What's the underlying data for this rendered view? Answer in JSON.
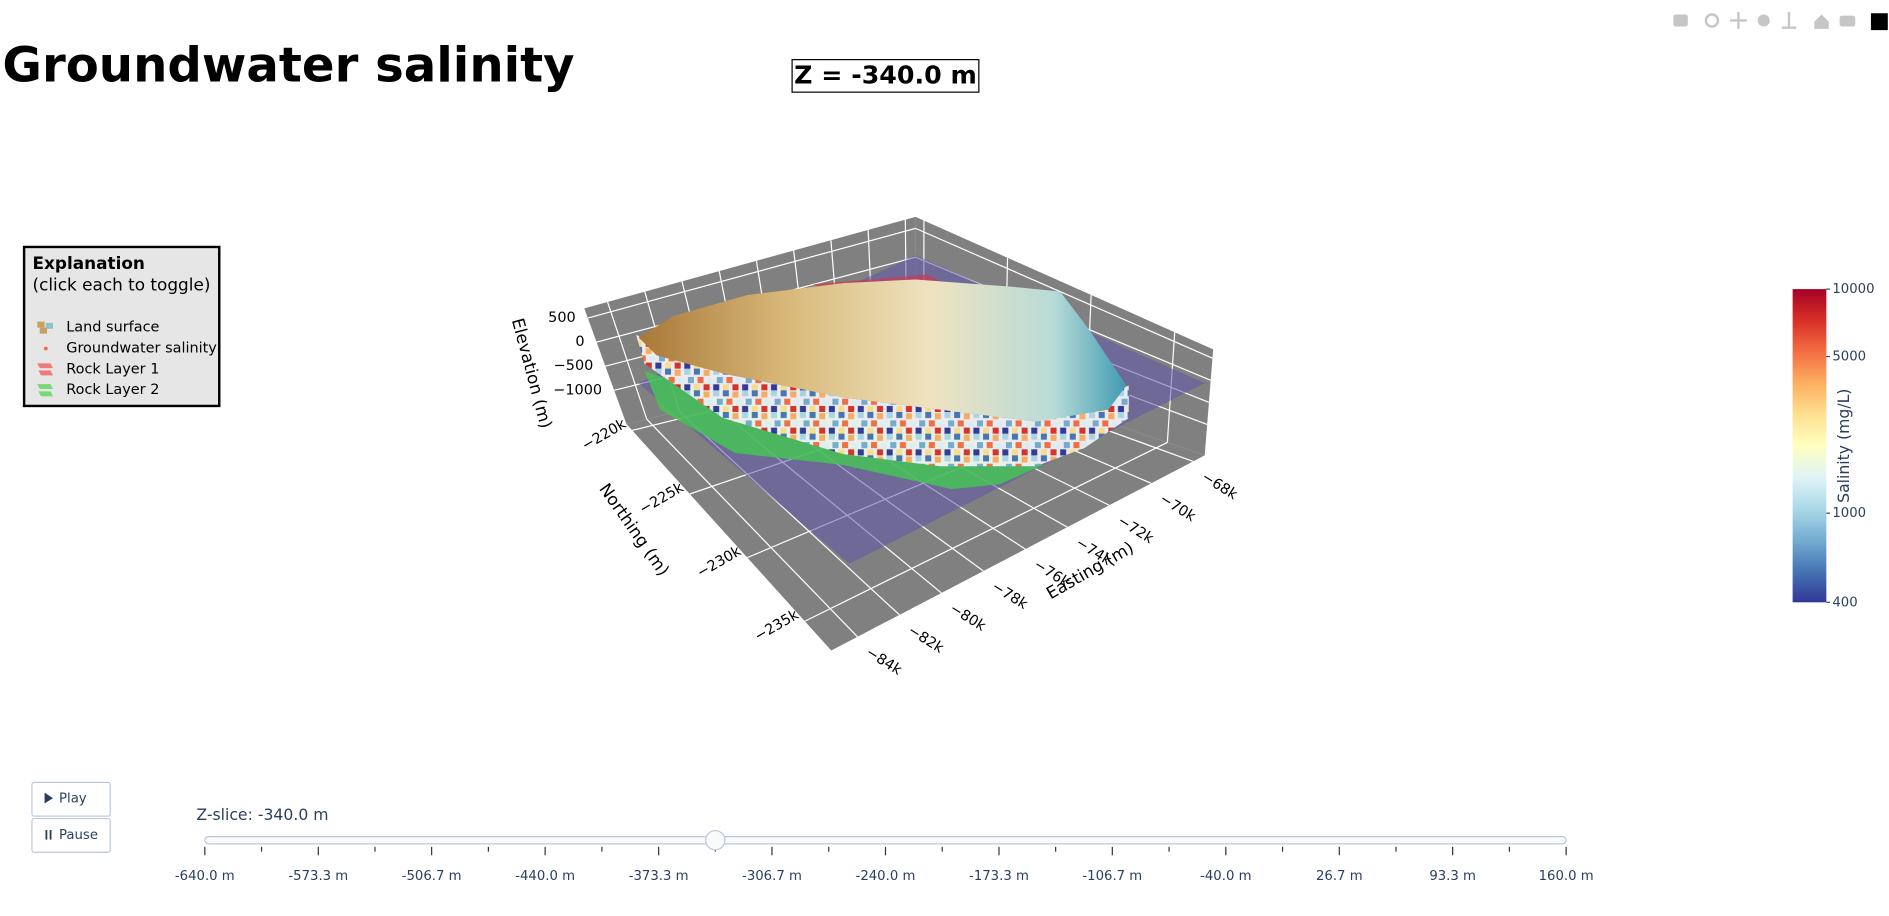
{
  "chart_data": {
    "type": "surface3d",
    "title": "Groundwater salinity",
    "annotation": "Z = -340.0 m",
    "legend": {
      "title": "Explanation",
      "subtitle": "(click each to toggle)",
      "items": [
        {
          "name": "Land surface",
          "color": "#c8a060"
        },
        {
          "name": "Groundwater salinity",
          "color": "#f46d43"
        },
        {
          "name": "Rock Layer 1",
          "color": "#f07a7a"
        },
        {
          "name": "Rock Layer 2",
          "color": "#78d878"
        }
      ]
    },
    "scene": {
      "xaxis": {
        "title": "Easting (m)",
        "range": [
          -85250,
          -67450
        ],
        "ticks": [
          {
            "value": -84000,
            "label": "−84k"
          },
          {
            "value": -82000,
            "label": "−82k"
          },
          {
            "value": -80000,
            "label": "−80k"
          },
          {
            "value": -78000,
            "label": "−78k"
          },
          {
            "value": -76000,
            "label": "−76k"
          },
          {
            "value": -74000,
            "label": "−74k"
          },
          {
            "value": -72000,
            "label": "−72k"
          },
          {
            "value": -70000,
            "label": "−70k"
          },
          {
            "value": -68000,
            "label": "−68k"
          }
        ]
      },
      "yaxis": {
        "title": "Northing (m)",
        "range": [
          -237300,
          -219500
        ],
        "ticks": [
          {
            "value": -235000,
            "label": "−235k"
          },
          {
            "value": -230000,
            "label": "−230k"
          },
          {
            "value": -225000,
            "label": "−225k"
          },
          {
            "value": -220000,
            "label": "−220k"
          }
        ]
      },
      "zaxis": {
        "title": "Elevation (m)",
        "range": [
          -1700,
          700
        ],
        "ticks": [
          {
            "value": -1000,
            "label": "−1000"
          },
          {
            "value": -500,
            "label": "−500"
          },
          0,
          500
        ]
      },
      "bgcolor": "#808080"
    },
    "colorbar": {
      "title": "Salinity (mg/L)",
      "log": true,
      "range": [
        400,
        10000
      ],
      "ticks": [
        400,
        1000,
        5000,
        10000
      ],
      "colors": [
        "#313695",
        "#4575b4",
        "#74add1",
        "#abd9e9",
        "#e0f3f8",
        "#ffffbf",
        "#fee090",
        "#fdae61",
        "#f46d43",
        "#d73027",
        "#a50026"
      ]
    }
  },
  "controls": {
    "buttons": [
      "Play",
      "Pause"
    ],
    "slider": {
      "current_label": "Z-slice: -340.0 m",
      "value": -340,
      "steps": [
        {
          "value": -640,
          "label": "-640.0 m"
        },
        {
          "value": -573.3,
          "label": "-573.3 m"
        },
        {
          "value": -506.7,
          "label": "-506.7 m"
        },
        {
          "value": -440,
          "label": "-440.0 m"
        },
        {
          "value": -373.3,
          "label": "-373.3 m"
        },
        {
          "value": -306.7,
          "label": "-306.7 m"
        },
        {
          "value": -240,
          "label": "-240.0 m"
        },
        {
          "value": -173.3,
          "label": "-173.3 m"
        },
        {
          "value": -106.7,
          "label": "-106.7 m"
        },
        {
          "value": -40,
          "label": "-40.0 m"
        },
        {
          "value": 26.7,
          "label": "26.7 m"
        },
        {
          "value": 93.3,
          "label": "93.3 m"
        },
        {
          "value": 160,
          "label": "160.0 m"
        }
      ]
    }
  }
}
